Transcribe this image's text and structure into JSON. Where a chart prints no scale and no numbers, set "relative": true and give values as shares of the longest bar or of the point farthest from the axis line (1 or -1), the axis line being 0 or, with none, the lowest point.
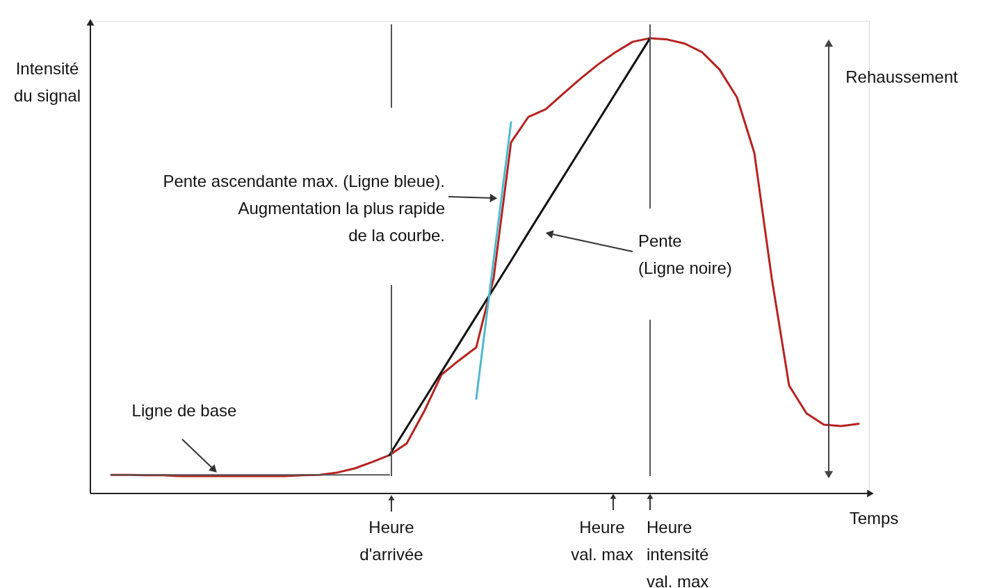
{
  "chart_data": {
    "type": "line",
    "relative": true,
    "ylabel": "Intensité du signal",
    "xlabel": "Temps",
    "categories": [
      null,
      null,
      null,
      null,
      null,
      null,
      null,
      null,
      null,
      null,
      null,
      null,
      null,
      null,
      null,
      null,
      null,
      null,
      null,
      null,
      null,
      null,
      null,
      null,
      null,
      null,
      null,
      null,
      null,
      null,
      null,
      null,
      null,
      null,
      null,
      null,
      null,
      null,
      null,
      null,
      null,
      null,
      null,
      null
    ],
    "series": [
      {
        "color": "#b5221f",
        "values": [
          0.041,
          0.041,
          0.04,
          0.04,
          0.038,
          0.038,
          0.038,
          0.038,
          0.038,
          0.038,
          0.038,
          0.04,
          0.041,
          0.046,
          0.055,
          0.069,
          0.084,
          0.11,
          0.18,
          0.261,
          0.292,
          0.321,
          0.473,
          0.771,
          0.827,
          0.844,
          0.878,
          0.911,
          0.942,
          0.969,
          0.992,
          1.0,
          0.997,
          0.988,
          0.969,
          0.931,
          0.87,
          0.748,
          0.473,
          0.237,
          0.176,
          0.151,
          0.148,
          0.153
        ]
      },
      {
        "color": "#111111",
        "values": [
          null,
          null,
          null,
          null,
          null,
          null,
          null,
          null,
          null,
          null,
          null,
          null,
          null,
          null,
          null,
          null,
          0.084,
          0.145,
          0.206,
          0.267,
          0.328,
          0.389,
          0.45,
          0.511,
          0.573,
          0.634,
          0.695,
          0.756,
          0.817,
          0.878,
          0.939,
          1.0,
          null,
          null,
          null,
          null,
          null,
          null,
          null,
          null,
          null,
          null,
          null,
          null
        ]
      },
      {
        "color": "#4fb8d0",
        "values": [
          null,
          null,
          null,
          null,
          null,
          null,
          null,
          null,
          null,
          null,
          null,
          null,
          null,
          null,
          null,
          null,
          null,
          null,
          null,
          null,
          null,
          0.208,
          0.513,
          0.815,
          null,
          null,
          null,
          null,
          null,
          null,
          null,
          null,
          null,
          null,
          null,
          null,
          null,
          null,
          null,
          null,
          null,
          null,
          null,
          null
        ]
      },
      {
        "color": "#555555",
        "values": [
          0.041,
          0.041,
          0.041,
          0.041,
          0.041,
          0.041,
          0.041,
          0.041,
          0.041,
          0.041,
          0.041,
          0.041,
          0.041,
          0.041,
          0.041,
          0.041,
          0.041,
          null,
          null,
          null,
          null,
          null,
          null,
          null,
          null,
          null,
          null,
          null,
          null,
          null,
          null,
          null,
          null,
          null,
          null,
          null,
          null,
          null,
          null,
          null,
          null,
          null,
          null,
          null
        ]
      }
    ],
    "annotations": [
      "Rehaussement",
      "Pente ascendante max. (Ligne bleue). Augmentation la plus rapide de la courbe.",
      "Pente (Ligne noire)",
      "Ligne de base",
      "Heure d'arrivée",
      "Heure val. max",
      "Heure intensité val. max"
    ]
  }
}
